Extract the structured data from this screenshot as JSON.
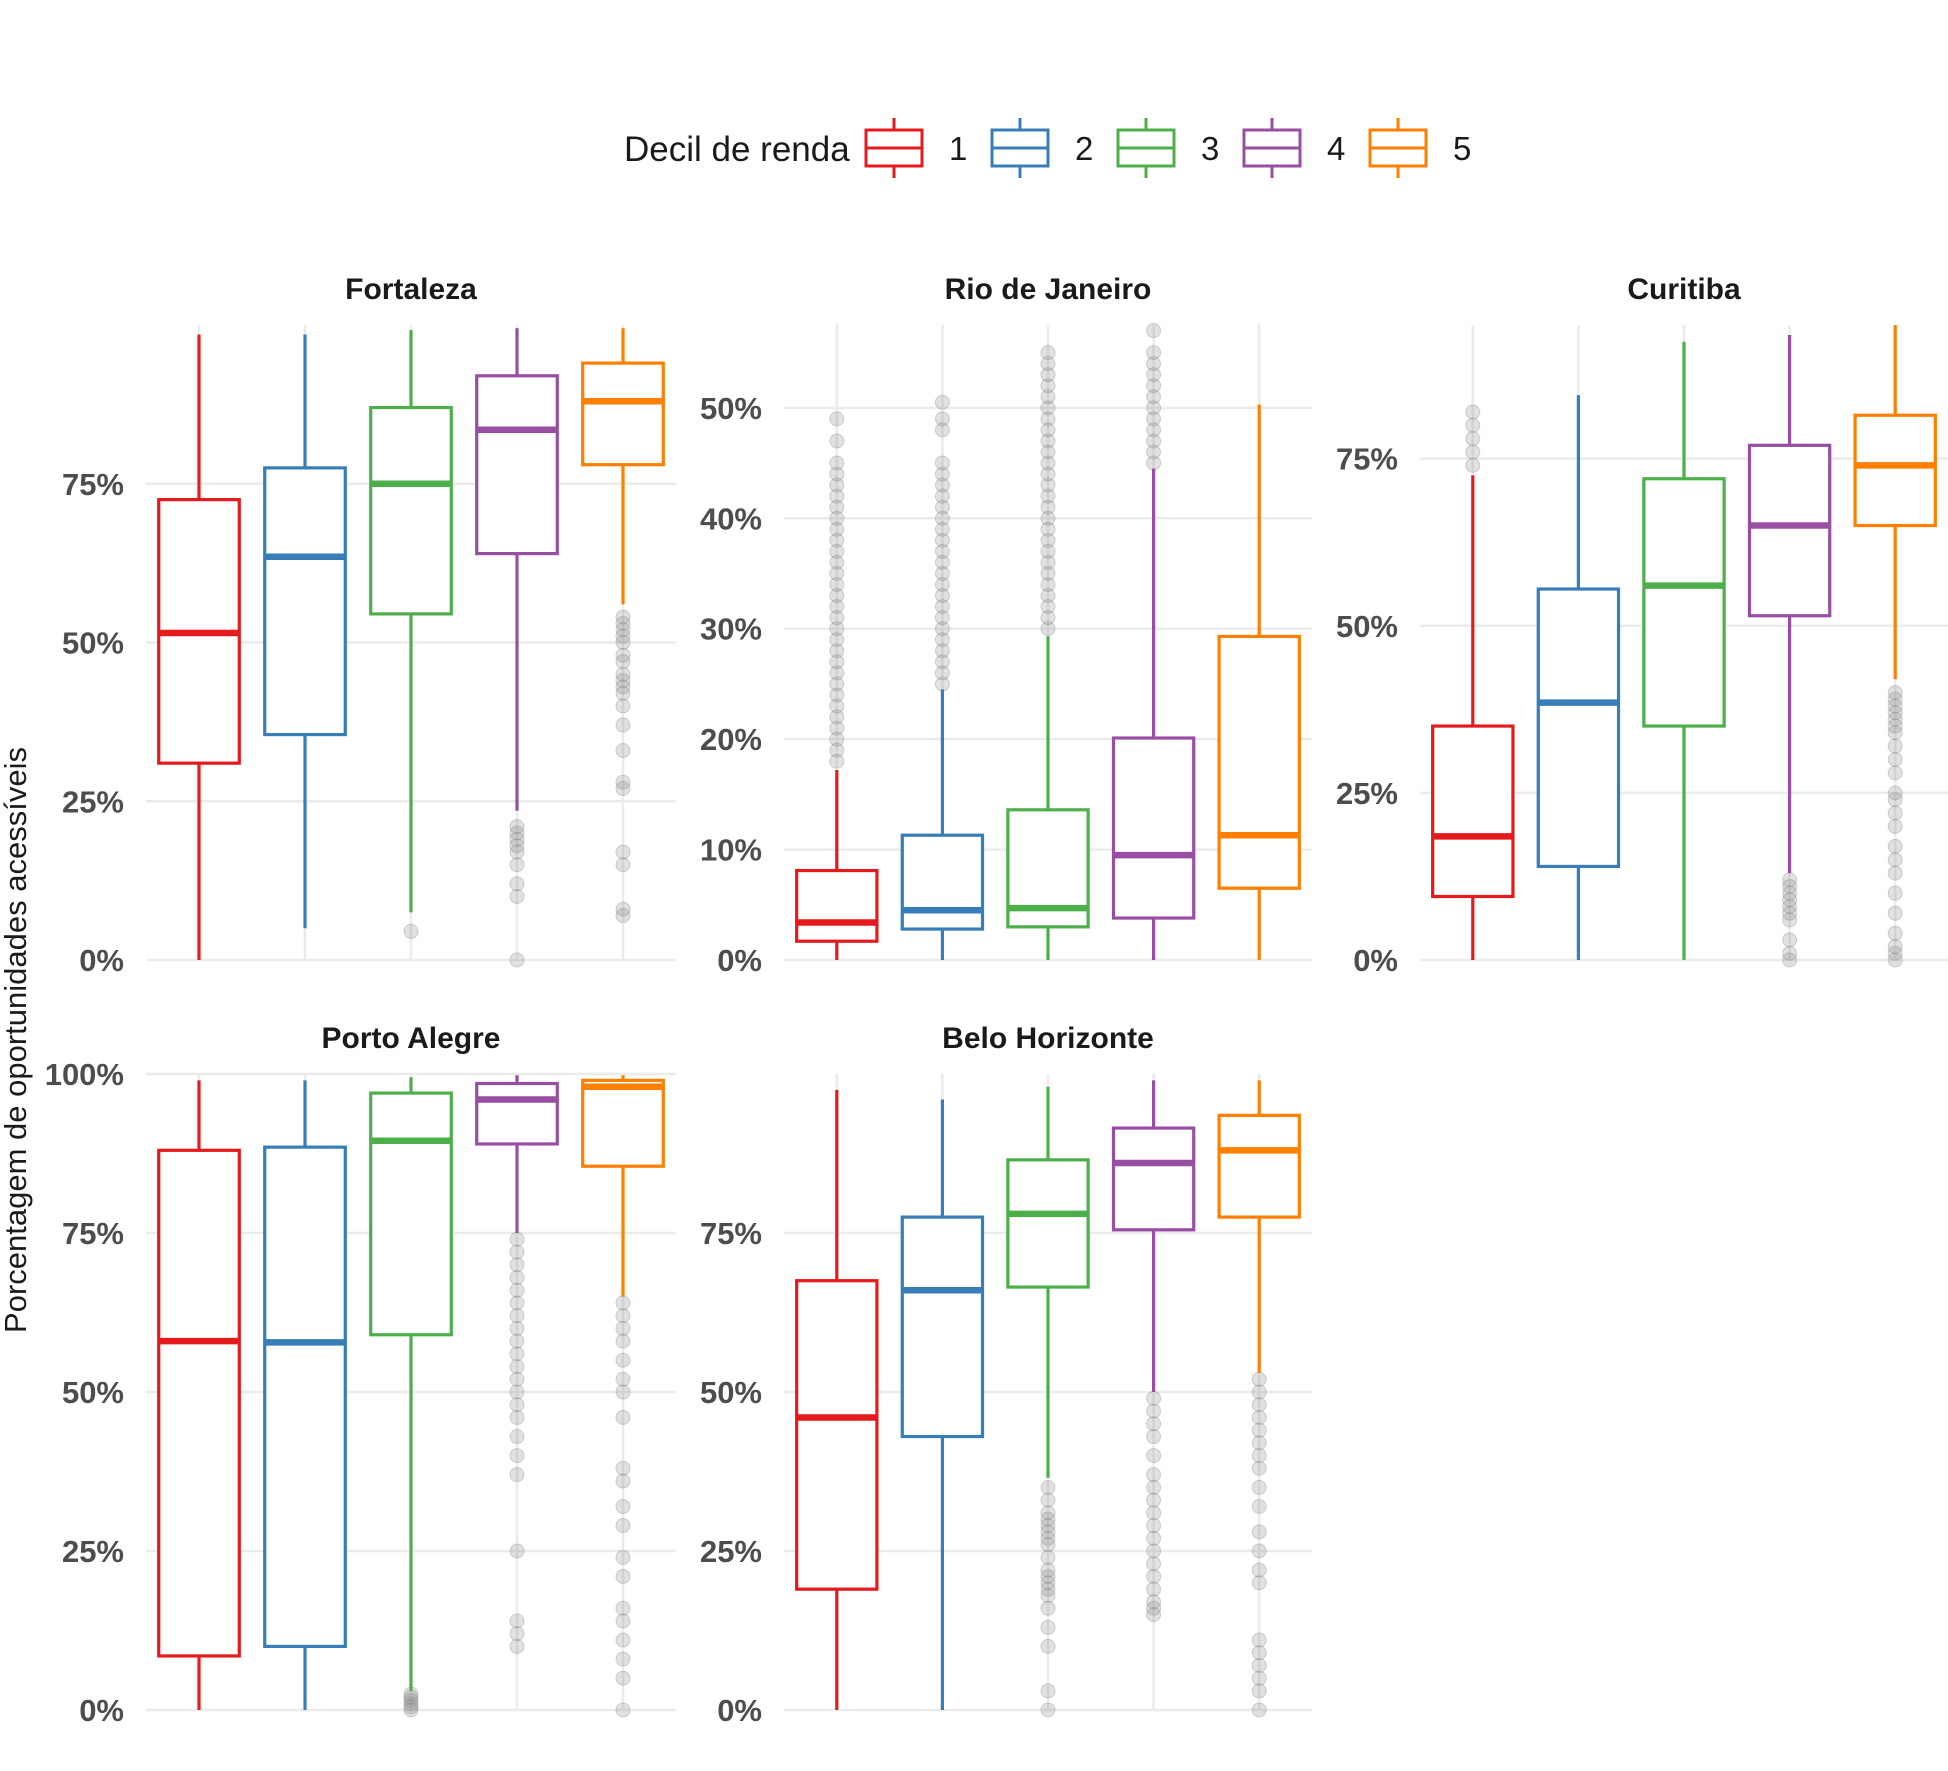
{
  "chart_data": {
    "type": "boxplot",
    "ylabel": "Porcentagem de oportunidades acessíveis",
    "legend": {
      "title": "Decil de renda",
      "position": "top",
      "entries": [
        "1",
        "2",
        "3",
        "4",
        "5"
      ],
      "colors": [
        "#e41a1c",
        "#377eb8",
        "#4daf4a",
        "#984ea3",
        "#ff7f00"
      ]
    },
    "grid": true,
    "y_format": "percent",
    "panels": [
      {
        "title": "Fortaleza",
        "ylim": [
          0,
          1.0
        ],
        "yticks": [
          0,
          0.25,
          0.5,
          0.75
        ],
        "ytick_labels": [
          "0%",
          "25%",
          "50%",
          "75%"
        ],
        "boxes": [
          {
            "decile": "1",
            "whisker_low": 0.0,
            "q1": 0.31,
            "median": 0.515,
            "q3": 0.725,
            "whisker_high": 0.985,
            "outliers": []
          },
          {
            "decile": "2",
            "whisker_low": 0.05,
            "q1": 0.355,
            "median": 0.635,
            "q3": 0.775,
            "whisker_high": 0.985,
            "outliers": []
          },
          {
            "decile": "3",
            "whisker_low": 0.075,
            "q1": 0.545,
            "median": 0.75,
            "q3": 0.87,
            "whisker_high": 0.992,
            "outliers": [
              0.045
            ]
          },
          {
            "decile": "4",
            "whisker_low": 0.235,
            "q1": 0.64,
            "median": 0.835,
            "q3": 0.92,
            "whisker_high": 0.995,
            "outliers": [
              0.0,
              0.1,
              0.12,
              0.15,
              0.17,
              0.18,
              0.19,
              0.2,
              0.21
            ]
          },
          {
            "decile": "5",
            "whisker_low": 0.56,
            "q1": 0.78,
            "median": 0.88,
            "q3": 0.94,
            "whisker_high": 0.995,
            "outliers": [
              0.07,
              0.08,
              0.15,
              0.17,
              0.27,
              0.28,
              0.33,
              0.37,
              0.4,
              0.42,
              0.43,
              0.44,
              0.45,
              0.47,
              0.48,
              0.5,
              0.51,
              0.52,
              0.53,
              0.54
            ]
          }
        ]
      },
      {
        "title": "Rio de Janeiro",
        "ylim": [
          0,
          0.575
        ],
        "yticks": [
          0,
          0.1,
          0.2,
          0.3,
          0.4,
          0.5
        ],
        "ytick_labels": [
          "0%",
          "10%",
          "20%",
          "30%",
          "40%",
          "50%"
        ],
        "boxes": [
          {
            "decile": "1",
            "whisker_low": 0.0,
            "q1": 0.017,
            "median": 0.034,
            "q3": 0.081,
            "whisker_high": 0.172,
            "outliers": [
              0.18,
              0.19,
              0.2,
              0.21,
              0.22,
              0.23,
              0.24,
              0.25,
              0.26,
              0.27,
              0.28,
              0.29,
              0.3,
              0.31,
              0.32,
              0.33,
              0.34,
              0.35,
              0.36,
              0.37,
              0.38,
              0.39,
              0.4,
              0.41,
              0.42,
              0.43,
              0.44,
              0.45,
              0.47,
              0.49
            ]
          },
          {
            "decile": "2",
            "whisker_low": 0.0,
            "q1": 0.028,
            "median": 0.045,
            "q3": 0.113,
            "whisker_high": 0.245,
            "outliers": [
              0.25,
              0.26,
              0.27,
              0.28,
              0.29,
              0.3,
              0.31,
              0.32,
              0.33,
              0.34,
              0.35,
              0.36,
              0.37,
              0.38,
              0.39,
              0.4,
              0.41,
              0.42,
              0.43,
              0.44,
              0.45,
              0.48,
              0.49,
              0.505
            ]
          },
          {
            "decile": "3",
            "whisker_low": 0.0,
            "q1": 0.03,
            "median": 0.047,
            "q3": 0.136,
            "whisker_high": 0.293,
            "outliers": [
              0.3,
              0.31,
              0.32,
              0.33,
              0.34,
              0.35,
              0.36,
              0.37,
              0.38,
              0.39,
              0.4,
              0.41,
              0.42,
              0.43,
              0.44,
              0.45,
              0.46,
              0.47,
              0.48,
              0.49,
              0.5,
              0.51,
              0.52,
              0.53,
              0.54,
              0.55
            ]
          },
          {
            "decile": "4",
            "whisker_low": 0.0,
            "q1": 0.038,
            "median": 0.095,
            "q3": 0.201,
            "whisker_high": 0.445,
            "outliers": [
              0.45,
              0.46,
              0.47,
              0.48,
              0.49,
              0.5,
              0.51,
              0.52,
              0.53,
              0.54,
              0.55,
              0.57
            ]
          },
          {
            "decile": "5",
            "whisker_low": 0.0,
            "q1": 0.065,
            "median": 0.113,
            "q3": 0.293,
            "whisker_high": 0.503,
            "outliers": []
          }
        ]
      },
      {
        "title": "Curitiba",
        "ylim": [
          0,
          0.95
        ],
        "yticks": [
          0,
          0.25,
          0.5,
          0.75
        ],
        "ytick_labels": [
          "0%",
          "25%",
          "50%",
          "75%"
        ],
        "boxes": [
          {
            "decile": "1",
            "whisker_low": 0.0,
            "q1": 0.095,
            "median": 0.185,
            "q3": 0.35,
            "whisker_high": 0.725,
            "outliers": [
              0.74,
              0.76,
              0.78,
              0.8,
              0.82
            ]
          },
          {
            "decile": "2",
            "whisker_low": 0.0,
            "q1": 0.14,
            "median": 0.385,
            "q3": 0.555,
            "whisker_high": 0.845,
            "outliers": []
          },
          {
            "decile": "3",
            "whisker_low": 0.0,
            "q1": 0.35,
            "median": 0.56,
            "q3": 0.72,
            "whisker_high": 0.925,
            "outliers": []
          },
          {
            "decile": "4",
            "whisker_low": 0.13,
            "q1": 0.515,
            "median": 0.65,
            "q3": 0.77,
            "whisker_high": 0.935,
            "outliers": [
              0.0,
              0.01,
              0.03,
              0.06,
              0.07,
              0.08,
              0.09,
              0.1,
              0.11,
              0.12
            ]
          },
          {
            "decile": "5",
            "whisker_low": 0.42,
            "q1": 0.65,
            "median": 0.74,
            "q3": 0.815,
            "whisker_high": 0.95,
            "outliers": [
              0.0,
              0.01,
              0.02,
              0.04,
              0.07,
              0.1,
              0.13,
              0.15,
              0.17,
              0.2,
              0.22,
              0.24,
              0.25,
              0.28,
              0.3,
              0.32,
              0.34,
              0.35,
              0.36,
              0.37,
              0.38,
              0.39,
              0.4
            ]
          }
        ]
      },
      {
        "title": "Porto Alegre",
        "ylim": [
          0,
          1.0
        ],
        "yticks": [
          0,
          0.25,
          0.5,
          0.75,
          1.0
        ],
        "ytick_labels": [
          "0%",
          "25%",
          "50%",
          "75%",
          "100%"
        ],
        "boxes": [
          {
            "decile": "1",
            "whisker_low": 0.0,
            "q1": 0.085,
            "median": 0.58,
            "q3": 0.88,
            "whisker_high": 0.99,
            "outliers": []
          },
          {
            "decile": "2",
            "whisker_low": 0.0,
            "q1": 0.1,
            "median": 0.578,
            "q3": 0.885,
            "whisker_high": 0.99,
            "outliers": []
          },
          {
            "decile": "3",
            "whisker_low": 0.03,
            "q1": 0.59,
            "median": 0.895,
            "q3": 0.97,
            "whisker_high": 0.995,
            "outliers": [
              0.0,
              0.005,
              0.01,
              0.015,
              0.02,
              0.025
            ]
          },
          {
            "decile": "4",
            "whisker_low": 0.75,
            "q1": 0.89,
            "median": 0.96,
            "q3": 0.985,
            "whisker_high": 0.998,
            "outliers": [
              0.1,
              0.12,
              0.14,
              0.25,
              0.37,
              0.4,
              0.43,
              0.46,
              0.48,
              0.5,
              0.52,
              0.54,
              0.56,
              0.58,
              0.6,
              0.62,
              0.64,
              0.66,
              0.68,
              0.7,
              0.72,
              0.74
            ]
          },
          {
            "decile": "5",
            "whisker_low": 0.65,
            "q1": 0.855,
            "median": 0.98,
            "q3": 0.99,
            "whisker_high": 0.998,
            "outliers": [
              0.0,
              0.05,
              0.08,
              0.11,
              0.14,
              0.16,
              0.21,
              0.24,
              0.29,
              0.32,
              0.36,
              0.38,
              0.46,
              0.5,
              0.52,
              0.55,
              0.58,
              0.6,
              0.62,
              0.64
            ]
          }
        ]
      },
      {
        "title": "Belo Horizonte",
        "ylim": [
          0,
          1.0
        ],
        "yticks": [
          0,
          0.25,
          0.5,
          0.75
        ],
        "ytick_labels": [
          "0%",
          "25%",
          "50%",
          "75%"
        ],
        "boxes": [
          {
            "decile": "1",
            "whisker_low": 0.0,
            "q1": 0.19,
            "median": 0.46,
            "q3": 0.675,
            "whisker_high": 0.975,
            "outliers": []
          },
          {
            "decile": "2",
            "whisker_low": 0.0,
            "q1": 0.43,
            "median": 0.66,
            "q3": 0.775,
            "whisker_high": 0.96,
            "outliers": []
          },
          {
            "decile": "3",
            "whisker_low": 0.365,
            "q1": 0.665,
            "median": 0.78,
            "q3": 0.865,
            "whisker_high": 0.98,
            "outliers": [
              0.0,
              0.03,
              0.1,
              0.13,
              0.16,
              0.18,
              0.19,
              0.2,
              0.21,
              0.22,
              0.24,
              0.26,
              0.27,
              0.28,
              0.29,
              0.3,
              0.31,
              0.33,
              0.35
            ]
          },
          {
            "decile": "4",
            "whisker_low": 0.5,
            "q1": 0.755,
            "median": 0.86,
            "q3": 0.915,
            "whisker_high": 0.99,
            "outliers": [
              0.15,
              0.16,
              0.17,
              0.19,
              0.21,
              0.23,
              0.25,
              0.27,
              0.29,
              0.31,
              0.33,
              0.35,
              0.37,
              0.4,
              0.43,
              0.45,
              0.47,
              0.49
            ]
          },
          {
            "decile": "5",
            "whisker_low": 0.53,
            "q1": 0.775,
            "median": 0.88,
            "q3": 0.935,
            "whisker_high": 0.99,
            "outliers": [
              0.0,
              0.03,
              0.05,
              0.07,
              0.09,
              0.11,
              0.2,
              0.22,
              0.25,
              0.28,
              0.32,
              0.35,
              0.38,
              0.4,
              0.42,
              0.44,
              0.46,
              0.48,
              0.5,
              0.52
            ]
          }
        ]
      }
    ]
  }
}
